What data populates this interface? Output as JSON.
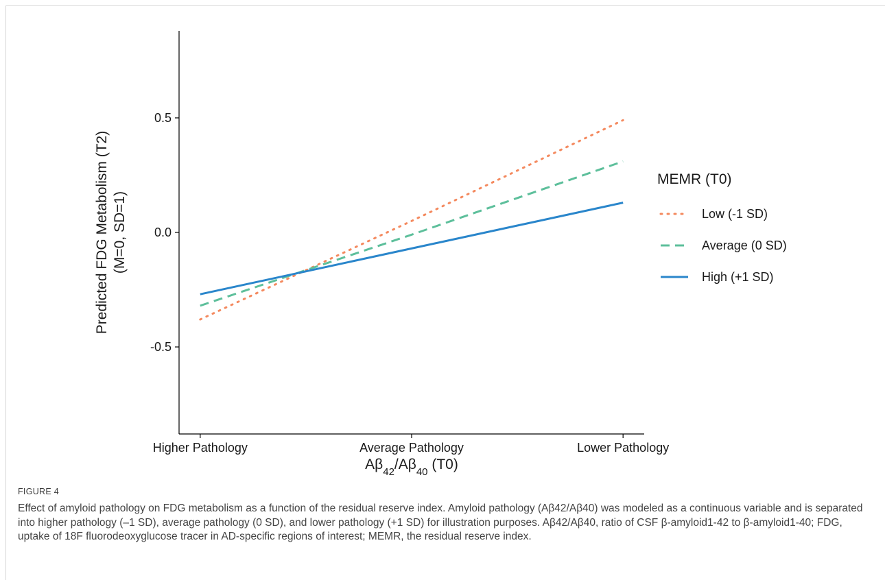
{
  "chart_data": {
    "type": "line",
    "categories": [
      "Higher Pathology",
      "Average Pathology",
      "Lower Pathology"
    ],
    "x": [
      -1,
      0,
      1
    ],
    "xlim": [
      -1.1,
      1.1
    ],
    "ylim": [
      -0.88,
      0.88
    ],
    "yticks": [
      0.5,
      0.0,
      -0.5
    ],
    "ytick_labels": [
      "0.5",
      "0.0",
      "-0.5"
    ],
    "xlabel": "Aβ42/Aβ40 (T0)",
    "ylabel": "Predicted FDG Metabolism (T2)",
    "ylabel2": "(M=0, SD=1)",
    "legend": {
      "title": "MEMR (T0)",
      "position": "right"
    },
    "grid": false,
    "series": [
      {
        "name": "Low (-1 SD)",
        "values": [
          -0.38,
          0.05,
          0.49
        ],
        "color": "#F4895E",
        "dash": "dotted"
      },
      {
        "name": "Average (0 SD)",
        "values": [
          -0.32,
          -0.01,
          0.31
        ],
        "color": "#5DBF9B",
        "dash": "dashed"
      },
      {
        "name": "High (+1 SD)",
        "values": [
          -0.27,
          -0.07,
          0.13
        ],
        "color": "#2A86CB",
        "dash": "solid"
      }
    ]
  },
  "figure": {
    "label": "FIGURE 4",
    "caption": "Effect of amyloid pathology on FDG metabolism as a function of the residual reserve index. Amyloid pathology (Aβ42/Aβ40) was modeled as a continuous variable and is separated into higher pathology (–1 SD), average pathology (0 SD), and lower pathology (+1 SD) for illustration purposes. Aβ42/Aβ40, ratio of CSF β-amyloid1-42 to β-amyloid1-40; FDG, uptake of 18F fluorodeoxyglucose tracer in AD-specific regions of interest; MEMR, the residual reserve index."
  }
}
